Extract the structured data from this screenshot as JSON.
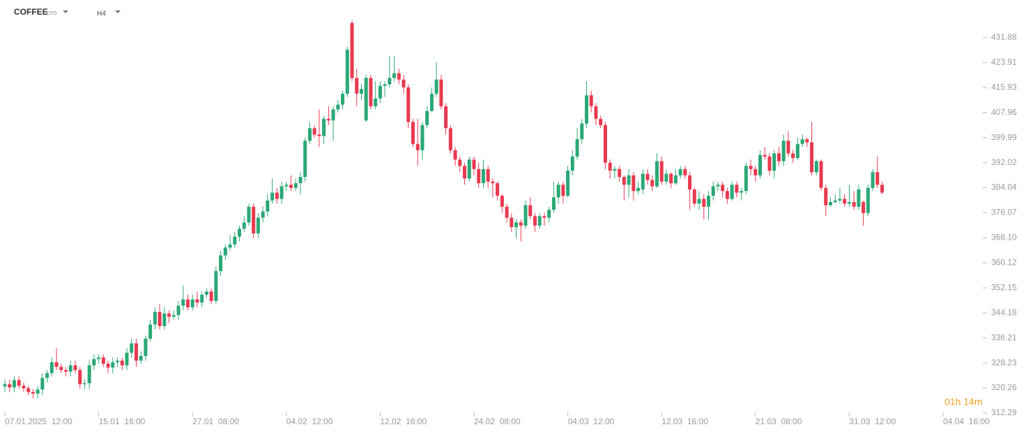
{
  "header": {
    "symbol": "COFFEE",
    "instrument": "CFD",
    "timeframe": "H4"
  },
  "countdown": "01h 14m",
  "chart_data": {
    "type": "candlestick",
    "up_color": "#2aa876",
    "down_color": "#e8394f",
    "xlim": [
      0,
      205
    ],
    "xticks": [
      {
        "value": 0,
        "label": "07.01.2025  12:00"
      },
      {
        "value": 20,
        "label": "15.01  16:00"
      },
      {
        "value": 40,
        "label": "27.01  08:00"
      },
      {
        "value": 60,
        "label": "04.02  12:00"
      },
      {
        "value": 80,
        "label": "12.02  16:00"
      },
      {
        "value": 100,
        "label": "24.02  08:00"
      },
      {
        "value": 120,
        "label": "04.03  12:00"
      },
      {
        "value": 140,
        "label": "12.03  16:00"
      },
      {
        "value": 160,
        "label": "21.03  08:00"
      },
      {
        "value": 180,
        "label": "31.03  12:00"
      },
      {
        "value": 200,
        "label": "04.04  16:00"
      }
    ],
    "ylim": [
      312.29,
      439.4
    ],
    "yticks": [
      431.88,
      423.91,
      415.93,
      407.96,
      399.99,
      392.02,
      384.04,
      376.07,
      {
        "value": 368.1,
        "label": "368.10"
      },
      360.12,
      352.15,
      344.18,
      336.21,
      328.23,
      320.26,
      312.29
    ],
    "open": [
      320.8,
      321.5,
      320.5,
      322.8,
      321.0,
      320.2,
      319.0,
      318.5,
      319.8,
      323.5,
      325.0,
      328.5,
      327.0,
      326.0,
      325.5,
      327.5,
      326.0,
      321.5,
      321.8,
      327.5,
      329.5,
      330.0,
      328.0,
      326.8,
      328.5,
      329.0,
      327.5,
      331.5,
      334.5,
      329.0,
      330.5,
      336.0,
      340.5,
      344.5,
      340.0,
      344.0,
      343.0,
      343.5,
      346.5,
      348.5,
      346.0,
      348.5,
      347.5,
      350.0,
      351.0,
      348.0,
      357.5,
      362.5,
      365.0,
      366.0,
      368.5,
      371.0,
      373.0,
      378.0,
      369.5,
      374.5,
      376.5,
      380.0,
      382.5,
      380.5,
      384.5,
      385.0,
      384.0,
      385.5,
      387.5,
      399.0,
      403.0,
      401.0,
      400.5,
      406.0,
      405.5,
      409.0,
      410.5,
      414.0,
      436.5,
      419.0,
      414.0,
      405.5,
      419.0,
      410.0,
      412.5,
      416.5,
      417.0,
      419.0,
      420.5,
      418.5,
      416.0,
      405.0,
      398.0,
      396.0,
      404.0,
      408.5,
      414.0,
      418.5,
      410.0,
      403.0,
      396.0,
      393.0,
      391.0,
      387.0,
      393.0,
      390.0,
      385.5,
      390.0,
      386.0,
      385.5,
      381.5,
      378.0,
      374.5,
      371.5,
      373.0,
      372.0,
      378.5,
      375.0,
      372.0,
      375.0,
      374.5,
      377.0,
      381.0,
      385.0,
      381.5,
      389.5,
      394.0,
      399.5,
      404.5,
      413.5,
      410.0,
      406.0,
      404.0,
      392.0,
      389.5,
      390.0,
      387.5,
      385.0,
      388.0,
      383.0,
      383.5,
      388.5,
      386.5,
      384.5,
      392.5,
      386.0,
      388.5,
      385.5,
      388.0,
      390.0,
      388.0,
      383.5,
      379.0,
      380.5,
      378.0,
      381.5,
      384.5,
      385.0,
      383.0,
      380.5,
      385.0,
      382.5,
      383.0,
      391.0,
      390.0,
      388.0,
      394.5,
      394.0,
      389.5,
      395.0,
      392.5,
      399.0,
      395.0,
      393.5,
      398.0,
      399.5,
      398.5,
      389.0,
      392.5,
      384.0,
      378.5,
      379.5,
      380.0,
      380.5,
      379.0,
      379.5,
      378.0,
      379.5,
      376.0,
      384.0,
      389.0,
      385.0
    ],
    "high": [
      323,
      323,
      324,
      324,
      322,
      321,
      320,
      321,
      325,
      326,
      330,
      333,
      328,
      327,
      329,
      329,
      327,
      323,
      329,
      331,
      331,
      331,
      329,
      330,
      330,
      330,
      333,
      336,
      336,
      332,
      337,
      342,
      346,
      347,
      346,
      345,
      345,
      348,
      353,
      350,
      350,
      351,
      351,
      352,
      352,
      359,
      364,
      366,
      369,
      370,
      372,
      375,
      379,
      379,
      376,
      378,
      382,
      387,
      384,
      386,
      386,
      388,
      387,
      389,
      400,
      405,
      404,
      409,
      407,
      410,
      410,
      412,
      415,
      429,
      437.3,
      422,
      417,
      420,
      420,
      418,
      418,
      418,
      426,
      426,
      422,
      420,
      417,
      406,
      406,
      405,
      410,
      416,
      424,
      420,
      411,
      404,
      397,
      394,
      392,
      394,
      394,
      392,
      393,
      391,
      387,
      386,
      382,
      379,
      376,
      374,
      374,
      380,
      381,
      376,
      376,
      376,
      378,
      386,
      386,
      386,
      391,
      396,
      403,
      406,
      418,
      415,
      411,
      407,
      405,
      393,
      391,
      391,
      388,
      390,
      389,
      386,
      390,
      390,
      388,
      395,
      394,
      390,
      389,
      390,
      391,
      391,
      389,
      384,
      383,
      382,
      383,
      386,
      386,
      386,
      384,
      386,
      386,
      384,
      392,
      393,
      391,
      396,
      397,
      395,
      396,
      397,
      401,
      402,
      396,
      400,
      401,
      400,
      405,
      393,
      393,
      385,
      381,
      382,
      384,
      382,
      385,
      383,
      385,
      380,
      385,
      390,
      394,
      386
    ],
    "low": [
      319,
      319,
      319,
      320,
      319,
      318,
      317,
      317,
      318,
      322,
      324,
      326,
      325,
      324,
      324,
      325,
      320,
      320,
      320,
      326,
      328,
      327,
      325,
      325,
      327,
      326,
      326,
      330,
      327,
      328,
      329,
      335,
      339,
      339,
      339,
      341,
      342,
      342,
      345,
      345,
      345,
      346,
      346,
      349,
      347,
      347,
      356,
      361,
      364,
      365,
      367,
      370,
      372,
      368,
      368,
      373,
      375,
      379,
      379,
      379,
      383,
      383,
      383,
      382,
      386,
      398,
      400,
      397,
      398,
      404,
      399,
      408,
      409,
      413,
      418,
      410,
      412,
      405,
      409,
      409,
      411,
      413,
      416,
      418,
      417,
      414,
      403,
      397,
      391,
      393,
      403,
      408,
      413,
      409,
      401,
      395,
      391,
      389,
      385,
      386,
      388,
      384,
      384,
      384,
      381,
      380,
      376,
      373,
      370,
      368,
      367,
      371,
      374,
      370,
      371,
      372,
      373,
      376,
      379,
      379,
      381,
      388,
      393,
      398,
      403,
      408,
      404,
      403,
      390,
      387,
      387,
      386,
      380,
      381,
      380,
      382,
      382,
      385,
      383,
      384,
      385,
      385,
      384,
      385,
      387,
      387,
      377,
      378,
      377,
      374,
      374,
      380,
      383,
      381,
      379,
      380,
      381,
      380,
      382,
      388,
      386,
      387,
      393,
      388,
      387,
      391,
      391,
      394,
      392,
      393,
      397,
      397,
      388,
      388,
      383,
      375,
      378,
      379,
      379,
      378,
      378,
      377,
      377,
      372,
      375,
      383,
      384,
      382
    ],
    "close": [
      321.5,
      320.5,
      322.8,
      321.0,
      320.2,
      319.0,
      318.5,
      319.8,
      323.5,
      325.0,
      328.5,
      327.0,
      326.0,
      325.5,
      327.5,
      326.0,
      321.5,
      321.8,
      327.5,
      329.5,
      330.0,
      328.0,
      326.8,
      328.5,
      329.0,
      327.5,
      331.5,
      334.5,
      329.0,
      330.5,
      336.0,
      340.5,
      344.5,
      340.0,
      344.0,
      343.0,
      343.5,
      346.5,
      348.5,
      346.0,
      348.5,
      347.5,
      350.0,
      351.0,
      348.0,
      357.5,
      362.5,
      365.0,
      366.0,
      368.5,
      371.0,
      373.0,
      378.0,
      369.5,
      374.5,
      376.5,
      380.0,
      382.5,
      380.5,
      384.5,
      385.0,
      384.0,
      385.5,
      387.5,
      399.0,
      403.0,
      401.0,
      400.5,
      406.0,
      405.5,
      409.0,
      410.5,
      414.0,
      428.0,
      419.0,
      414.0,
      415.5,
      419.0,
      410.0,
      412.5,
      416.5,
      417.0,
      419.0,
      420.5,
      418.5,
      416.0,
      405.0,
      398.0,
      396.0,
      404.0,
      408.5,
      414.0,
      418.5,
      410.0,
      403.0,
      396.0,
      393.0,
      391.0,
      387.0,
      393.0,
      390.0,
      385.5,
      390.0,
      386.0,
      385.5,
      381.5,
      378.0,
      374.5,
      371.5,
      373.0,
      372.0,
      378.5,
      375.0,
      372.0,
      375.0,
      374.5,
      377.0,
      381.0,
      385.0,
      381.5,
      389.5,
      394.0,
      399.5,
      404.5,
      413.5,
      410.0,
      406.0,
      404.0,
      392.0,
      389.5,
      390.0,
      387.5,
      385.0,
      388.0,
      383.0,
      384.0,
      388.5,
      386.5,
      384.5,
      392.5,
      386.0,
      388.5,
      385.5,
      388.0,
      390.0,
      388.0,
      383.5,
      379.0,
      380.5,
      378.0,
      381.5,
      384.5,
      385.0,
      383.0,
      380.5,
      385.0,
      382.5,
      383.0,
      391.0,
      390.0,
      388.0,
      394.5,
      394.0,
      389.5,
      395.0,
      392.5,
      399.0,
      395.0,
      393.5,
      398.0,
      399.5,
      398.5,
      389.0,
      392.5,
      384.0,
      378.5,
      379.5,
      380.0,
      380.5,
      379.0,
      379.5,
      378.0,
      383.5,
      376.0,
      384.0,
      389.0,
      385.0,
      382.5
    ]
  }
}
